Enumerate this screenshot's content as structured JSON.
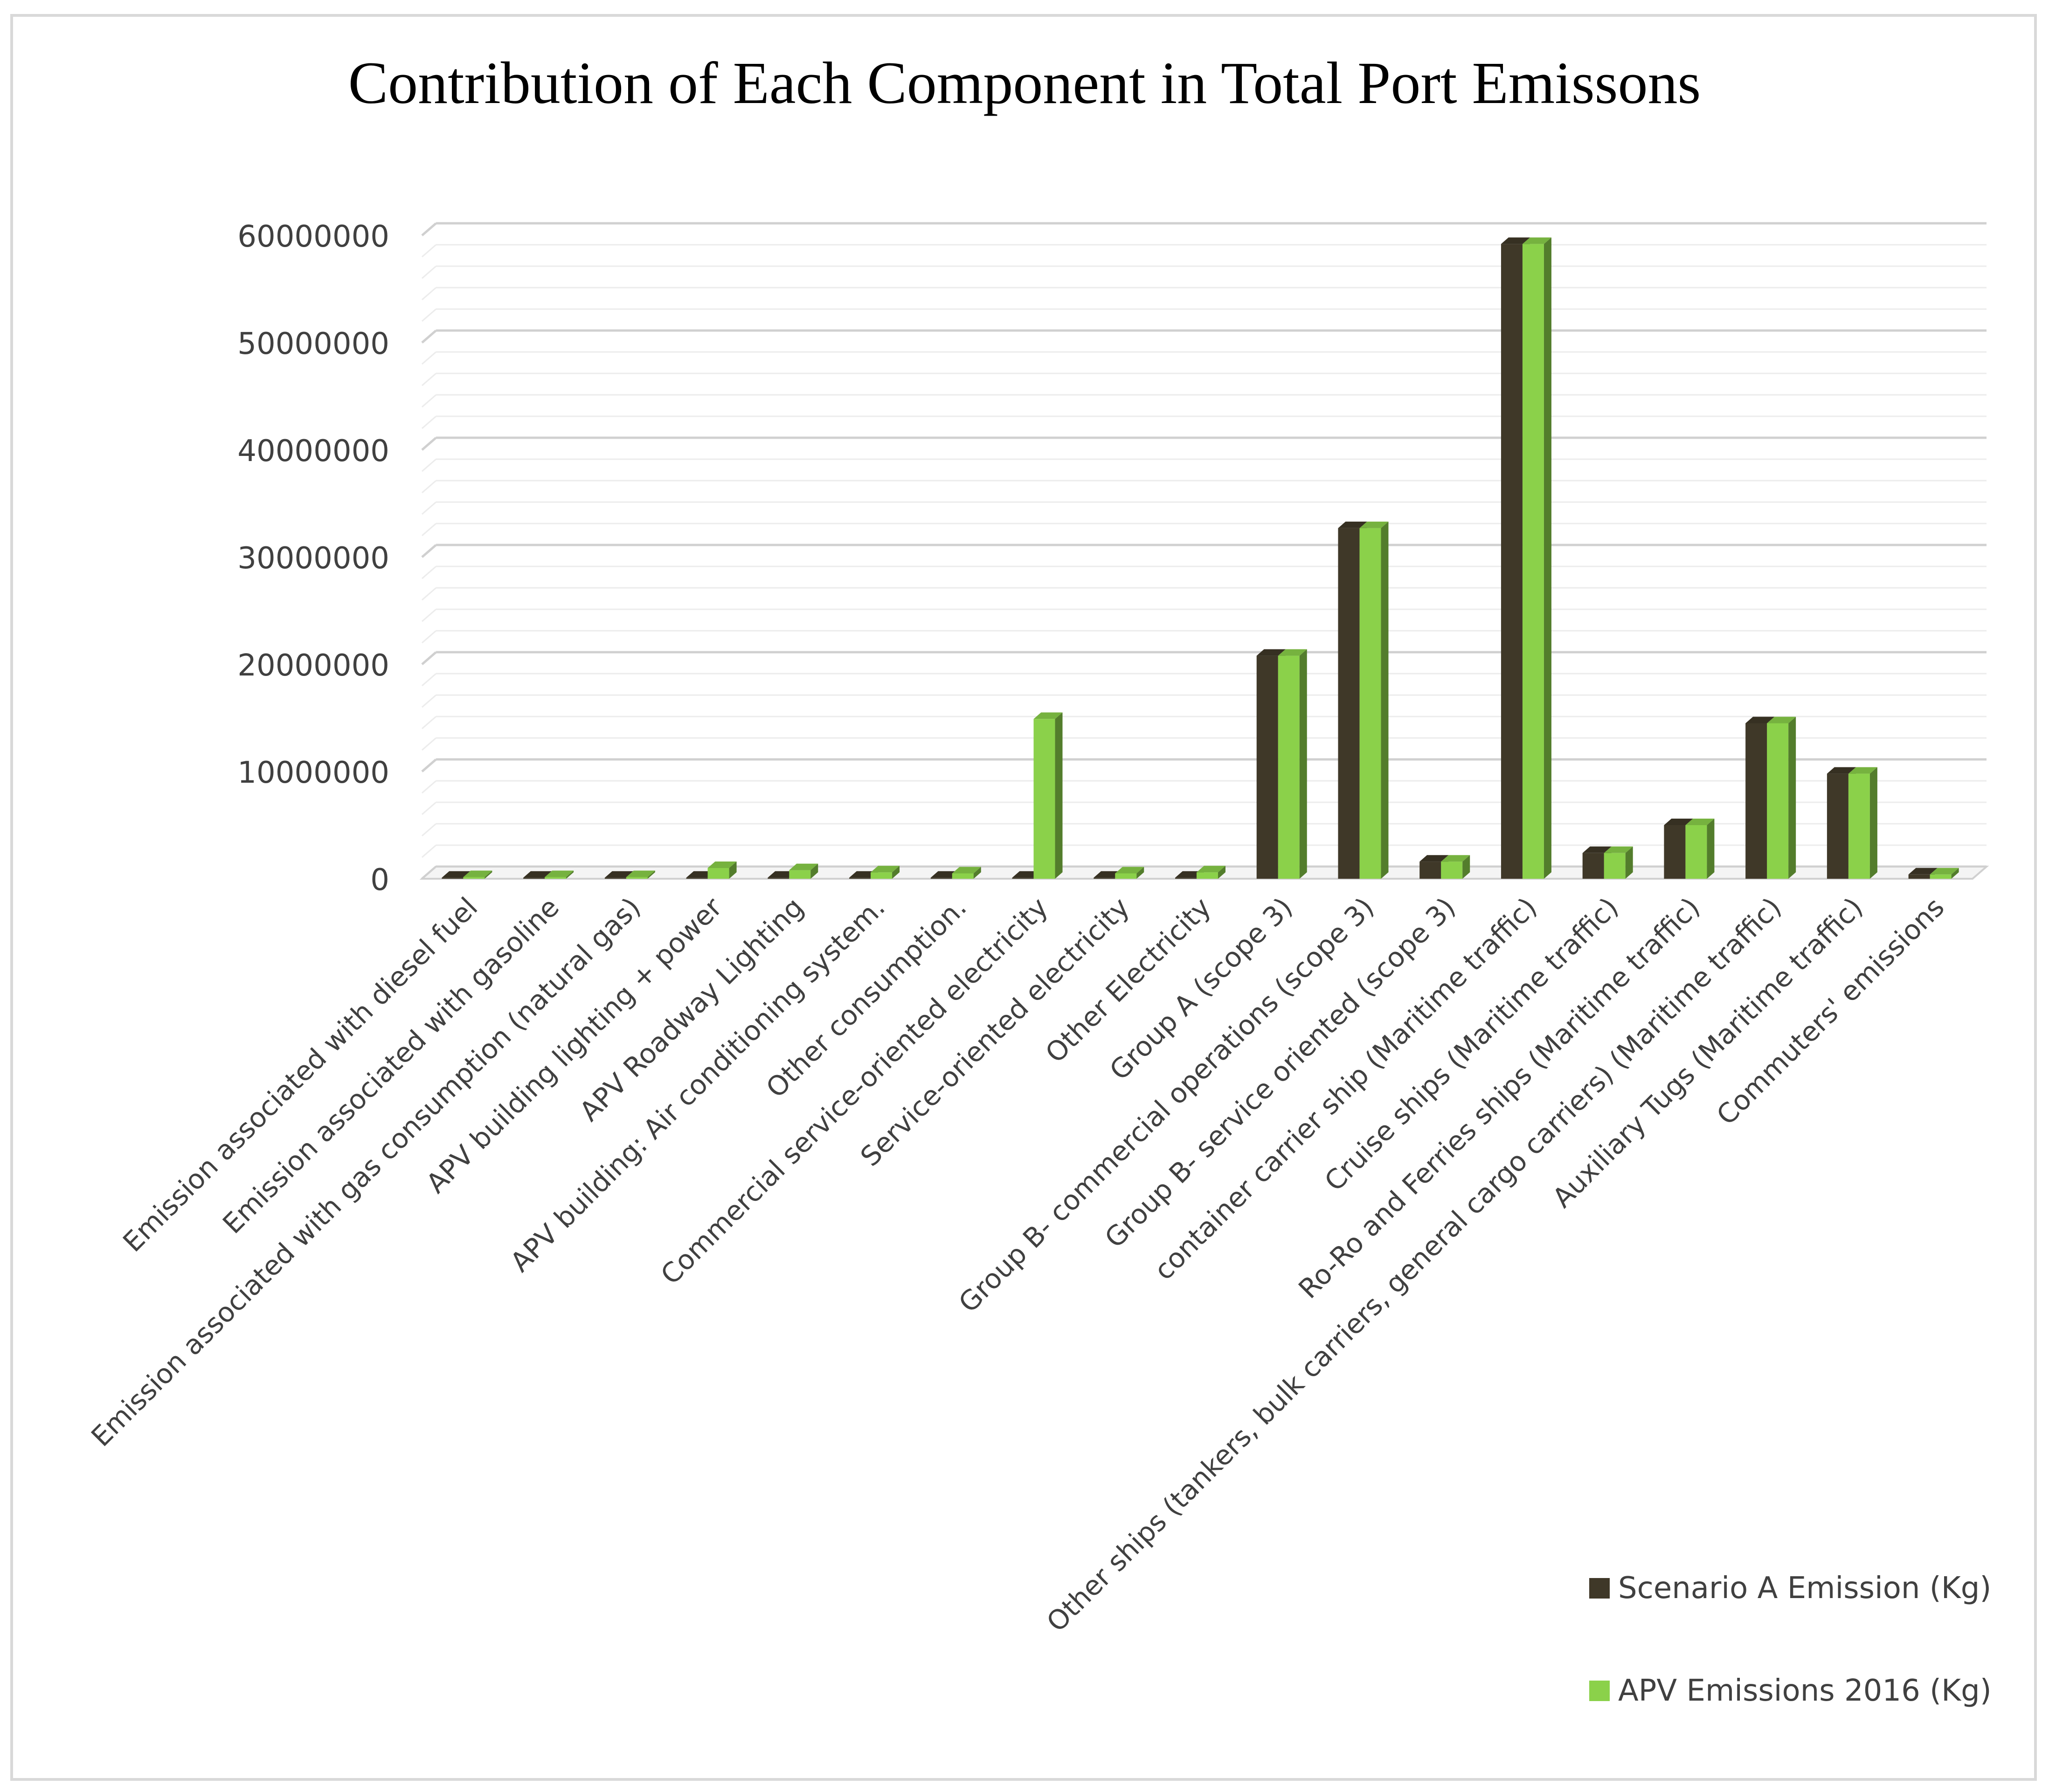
{
  "chart_data": {
    "type": "bar",
    "title": "Contribution of Each Component in Total Port Emissons",
    "xlabel": "",
    "ylabel": "",
    "ylim": [
      0,
      60000000
    ],
    "yticks": [
      0,
      10000000,
      20000000,
      30000000,
      40000000,
      50000000,
      60000000
    ],
    "grid": true,
    "legend_position": "bottom-right",
    "categories": [
      "Emission associated with diesel fuel",
      "Emission associated with gasoline",
      "Emission associated with gas consumption (natural gas)",
      "APV building lighting + power",
      "APV Roadway Lighting",
      "APV building: Air conditioning system.",
      "Other consumption.",
      "Commercial service-oriented electricity",
      "Service-oriented electricity",
      "Other Electricity",
      "Group A (scope 3)",
      "Group B- commercial operations (scope 3)",
      "Group B- service oriented (scope 3)",
      "container carrier ship (Maritime traffic)",
      "Cruise ships (Maritime traffic)",
      "Ro-Ro and Ferries ships (Maritime traffic)",
      "Other ships (tankers, bulk carriers, general cargo carriers) (Maritime traffic)",
      "Auxiliary Tugs (Maritime traffic)",
      "Commuters' emissions"
    ],
    "series": [
      {
        "name": "Scenario A Emission (Kg)",
        "color": "#3f3828",
        "values": [
          100000,
          100000,
          100000,
          100000,
          100000,
          100000,
          100000,
          100000,
          100000,
          100000,
          20800000,
          32700000,
          1600000,
          59200000,
          2400000,
          5000000,
          14500000,
          9800000,
          400000
        ]
      },
      {
        "name": "APV Emissions 2016 (Kg)",
        "color": "#8bd14a",
        "values": [
          150000,
          150000,
          150000,
          1000000,
          800000,
          600000,
          500000,
          14900000,
          500000,
          600000,
          20800000,
          32700000,
          1600000,
          59200000,
          2400000,
          5000000,
          14500000,
          9800000,
          400000
        ]
      }
    ]
  }
}
